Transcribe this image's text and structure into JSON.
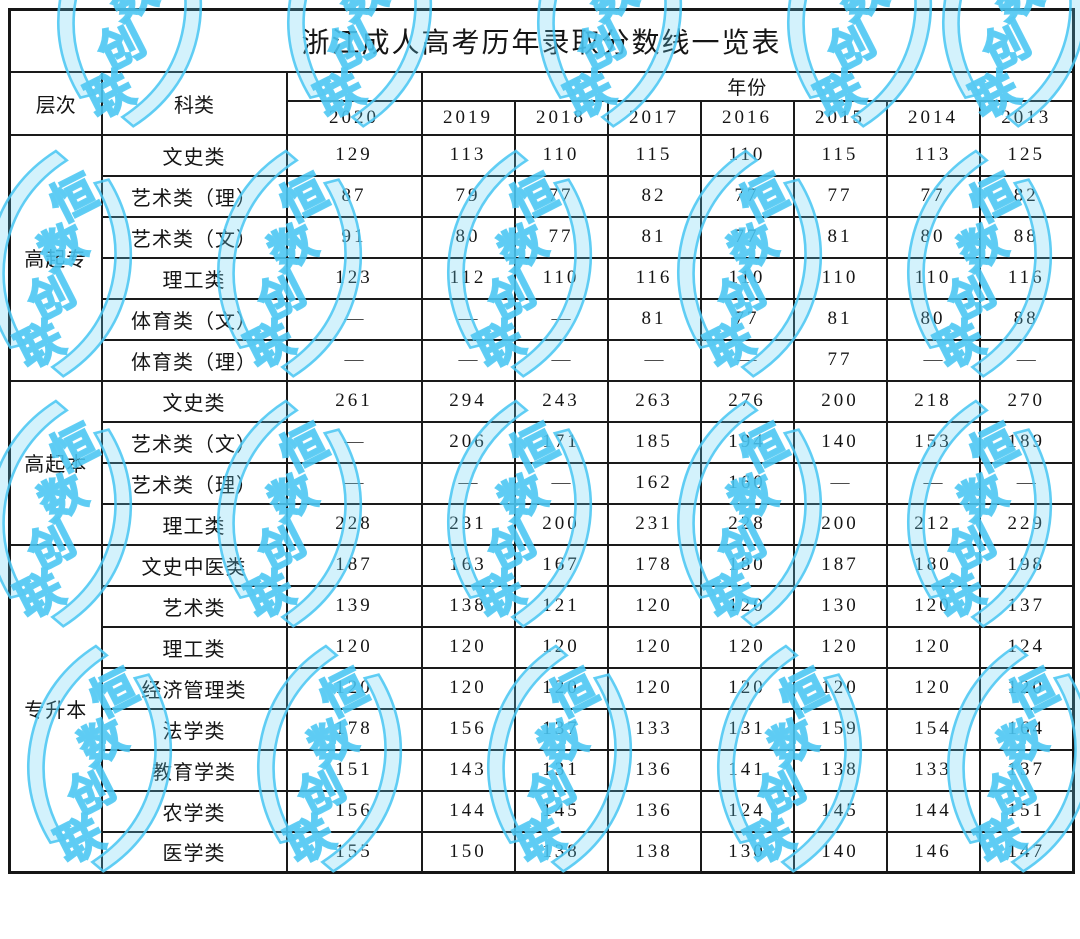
{
  "title": "浙江成人高考历年录取分数线一览表",
  "header": {
    "level_label": "层次",
    "category_label": "科类",
    "year_group_label": "年份",
    "years": [
      "2020",
      "2019",
      "2018",
      "2017",
      "2016",
      "2015",
      "2014",
      "2013"
    ]
  },
  "sections": [
    {
      "level": "高起专",
      "rows": [
        {
          "category": "文史类",
          "values": [
            "129",
            "113",
            "110",
            "115",
            "110",
            "115",
            "113",
            "125"
          ]
        },
        {
          "category": "艺术类（理）",
          "values": [
            "87",
            "79",
            "77",
            "82",
            "77",
            "77",
            "77",
            "82"
          ]
        },
        {
          "category": "艺术类（文）",
          "values": [
            "91",
            "80",
            "77",
            "81",
            "77",
            "81",
            "80",
            "88"
          ]
        },
        {
          "category": "理工类",
          "values": [
            "123",
            "112",
            "110",
            "116",
            "110",
            "110",
            "110",
            "116"
          ]
        },
        {
          "category": "体育类（文）",
          "values": [
            "—",
            "—",
            "—",
            "81",
            "77",
            "81",
            "80",
            "88"
          ]
        },
        {
          "category": "体育类（理）",
          "values": [
            "—",
            "—",
            "—",
            "—",
            "—",
            "77",
            "—",
            "—"
          ]
        }
      ]
    },
    {
      "level": "高起本",
      "rows": [
        {
          "category": "文史类",
          "values": [
            "261",
            "294",
            "243",
            "263",
            "276",
            "200",
            "218",
            "270"
          ]
        },
        {
          "category": "艺术类（文）",
          "values": [
            "—",
            "206",
            "171",
            "185",
            "194",
            "140",
            "153",
            "189"
          ]
        },
        {
          "category": "艺术类（理）",
          "values": [
            "—",
            "—",
            "—",
            "162",
            "160",
            "—",
            "—",
            "—"
          ]
        },
        {
          "category": "理工类",
          "values": [
            "228",
            "231",
            "200",
            "231",
            "228",
            "200",
            "212",
            "229"
          ]
        }
      ]
    },
    {
      "level": "专升本",
      "rows": [
        {
          "category": "文史中医类",
          "values": [
            "187",
            "163",
            "167",
            "178",
            "180",
            "187",
            "180",
            "198"
          ]
        },
        {
          "category": "艺术类",
          "values": [
            "139",
            "138",
            "121",
            "120",
            "120",
            "130",
            "120",
            "137"
          ]
        },
        {
          "category": "理工类",
          "values": [
            "120",
            "120",
            "120",
            "120",
            "120",
            "120",
            "120",
            "124"
          ]
        },
        {
          "category": "经济管理类",
          "values": [
            "120",
            "120",
            "120",
            "120",
            "120",
            "120",
            "120",
            "120"
          ]
        },
        {
          "category": "法学类",
          "values": [
            "178",
            "156",
            "137",
            "133",
            "131",
            "159",
            "154",
            "164"
          ]
        },
        {
          "category": "教育学类",
          "values": [
            "151",
            "143",
            "131",
            "136",
            "141",
            "138",
            "133",
            "137"
          ]
        },
        {
          "category": "农学类",
          "values": [
            "156",
            "144",
            "145",
            "136",
            "124",
            "145",
            "144",
            "151"
          ]
        },
        {
          "category": "医学类",
          "values": [
            "155",
            "150",
            "138",
            "138",
            "130",
            "140",
            "146",
            "147"
          ]
        }
      ]
    }
  ],
  "watermark": {
    "open_bracket": "（",
    "close_bracket": "）",
    "text": "恒数创联",
    "color": "#4ac6f2"
  }
}
